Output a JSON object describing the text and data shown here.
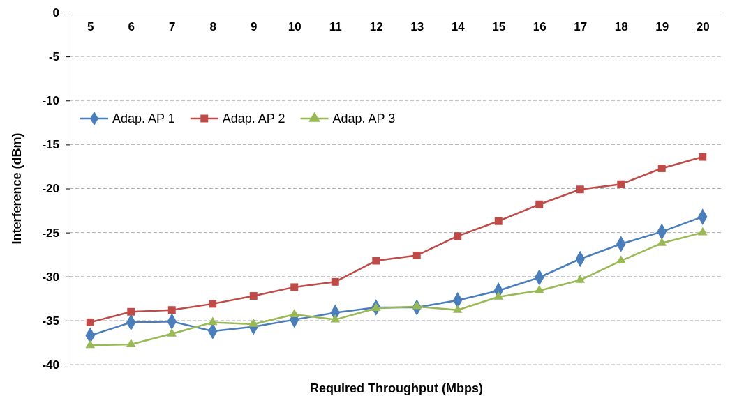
{
  "chart_data": {
    "type": "line",
    "xlabel": "Required Throughput (Mbps)",
    "ylabel": "Interference (dBm)",
    "categories": [
      "5",
      "6",
      "7",
      "8",
      "9",
      "10",
      "11",
      "12",
      "13",
      "14",
      "15",
      "16",
      "17",
      "18",
      "19",
      "20"
    ],
    "series": [
      {
        "name": "Adap. AP 1",
        "color": "#4a7ebb",
        "marker": "diamond",
        "values": [
          -36.7,
          -35.2,
          -35.1,
          -36.2,
          -35.7,
          -34.9,
          -34.1,
          -33.5,
          -33.5,
          -32.7,
          -31.6,
          -30.1,
          -28.0,
          -26.3,
          -24.9,
          -23.2
        ]
      },
      {
        "name": "Adap. AP 2",
        "color": "#be4b48",
        "marker": "square",
        "values": [
          -35.2,
          -34.0,
          -33.8,
          -33.1,
          -32.2,
          -31.2,
          -30.6,
          -28.2,
          -27.6,
          -25.4,
          -23.7,
          -21.8,
          -20.1,
          -19.5,
          -17.7,
          -16.4
        ]
      },
      {
        "name": "Adap. AP 3",
        "color": "#98b954",
        "marker": "triangle",
        "values": [
          -37.8,
          -37.7,
          -36.5,
          -35.2,
          -35.4,
          -34.3,
          -34.9,
          -33.6,
          -33.4,
          -33.8,
          -32.3,
          -31.6,
          -30.4,
          -28.2,
          -26.2,
          -25.0
        ]
      }
    ],
    "ylim": [
      -40,
      0
    ],
    "yticks": [
      -40,
      -35,
      -30,
      -25,
      -20,
      -15,
      -10,
      -5,
      0
    ],
    "grid": "y",
    "legend": "top left"
  }
}
